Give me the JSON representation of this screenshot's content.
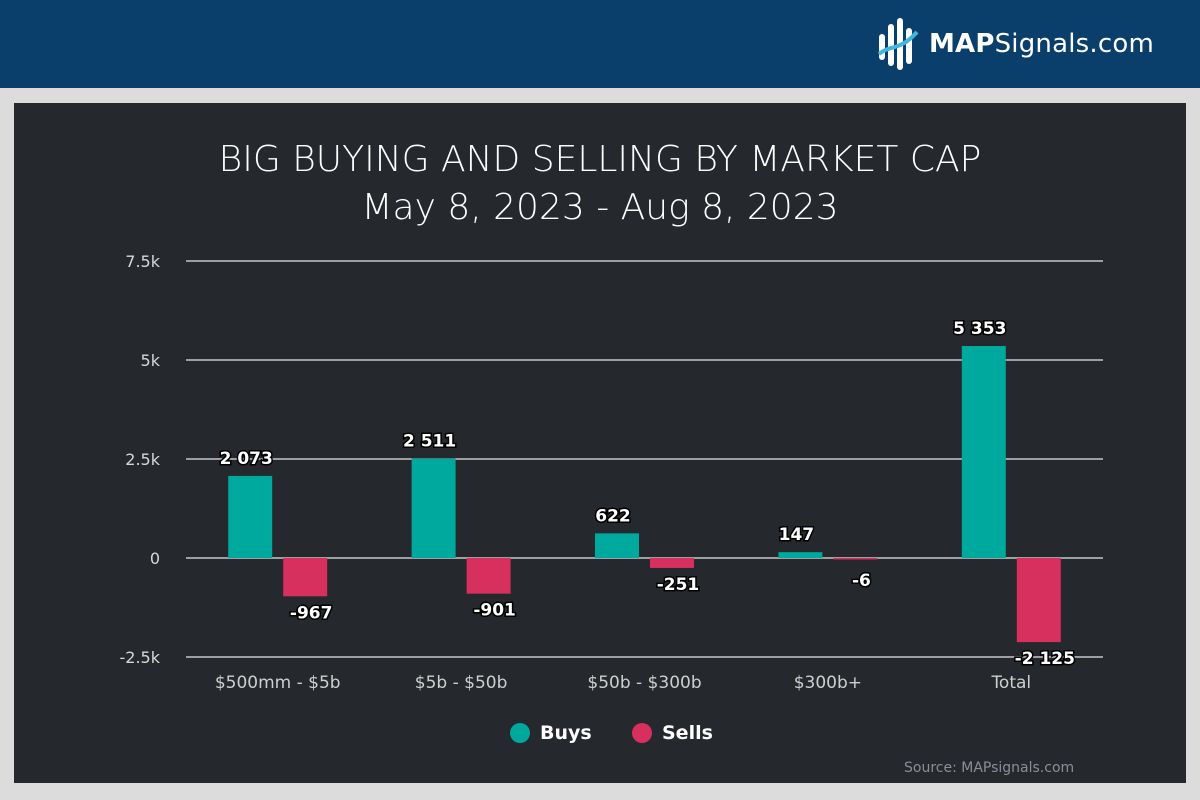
{
  "brand": {
    "name_bold": "MAP",
    "name_rest": "Signals.com",
    "color": "#0b3f6b"
  },
  "title_line1": "BIG BUYING AND SELLING BY MARKET CAP",
  "title_line2": "May 8, 2023 - Aug 8, 2023",
  "source": "Source: MAPsignals.com",
  "colors": {
    "buys": "#00a99d",
    "sells": "#d72f5e",
    "grid": "#e6e6e6",
    "background": "#25282c"
  },
  "chart_data": {
    "type": "bar",
    "title": "BIG BUYING AND SELLING BY MARKET CAP",
    "subtitle": "May 8, 2023 - Aug 8, 2023",
    "categories": [
      "$500mm - $5b",
      "$5b - $50b",
      "$50b - $300b",
      "$300b+",
      "Total"
    ],
    "series": [
      {
        "name": "Buys",
        "values": [
          2073,
          2511,
          622,
          147,
          5353
        ],
        "labels": [
          "2 073",
          "2 511",
          "622",
          "147",
          "5 353"
        ]
      },
      {
        "name": "Sells",
        "values": [
          -967,
          -901,
          -251,
          -6,
          -2125
        ],
        "labels": [
          "-967",
          "-901",
          "-251",
          "-6",
          "-2 125"
        ]
      }
    ],
    "ylim": [
      -2500,
      7500
    ],
    "yticks": [
      -2500,
      0,
      2500,
      5000,
      7500
    ],
    "ytick_labels": [
      "-2.5k",
      "0",
      "2.5k",
      "5k",
      "7.5k"
    ],
    "grid": true,
    "legend": "bottom-center"
  }
}
